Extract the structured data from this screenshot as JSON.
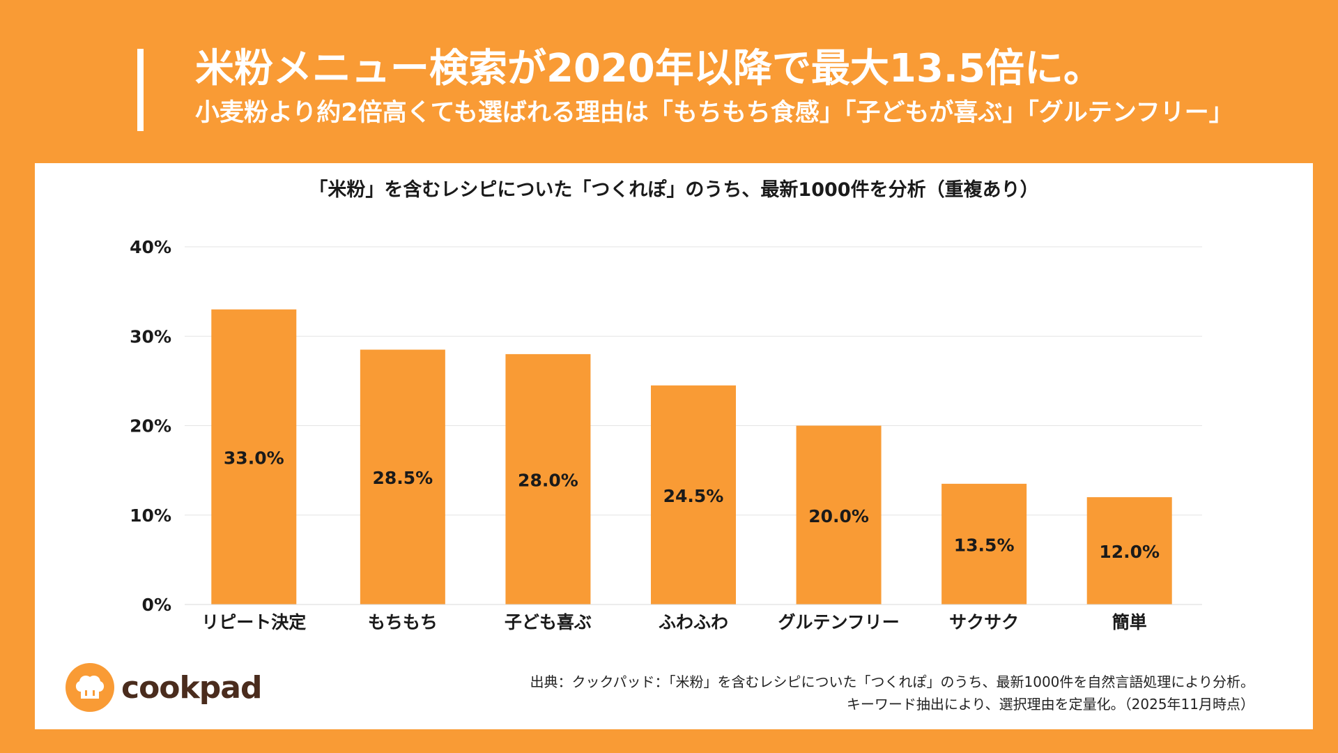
{
  "header": {
    "title": "米粉メニュー検索が2020年以降で最大13.5倍に。",
    "subtitle": "小麦粉より約2倍高くても選ばれる理由は「もちもち食感」「子どもが喜ぶ」「グルテンフリー」"
  },
  "colors": {
    "background": "#F99B35",
    "bar": "#F99B35",
    "logo_text": "#4a2c1d"
  },
  "chart_data": {
    "type": "bar",
    "title": "「米粉」を含むレシピについた「つくれぽ」のうち、最新1000件を分析（重複あり）",
    "categories": [
      "リピート決定",
      "もちもち",
      "子ども喜ぶ",
      "ふわふわ",
      "グルテンフリー",
      "サクサク",
      "簡単"
    ],
    "values": [
      33.0,
      28.5,
      28.0,
      24.5,
      20.0,
      13.5,
      12.0
    ],
    "value_labels": [
      "33.0%",
      "28.5%",
      "28.0%",
      "24.5%",
      "20.0%",
      "13.5%",
      "12.0%"
    ],
    "y_ticks": [
      0,
      10,
      20,
      30,
      40
    ],
    "y_tick_labels": [
      "0%",
      "10%",
      "20%",
      "30%",
      "40%"
    ],
    "ylim": [
      0,
      40
    ],
    "grid": true,
    "xlabel": "",
    "ylabel": ""
  },
  "logo": {
    "text": "cookpad",
    "icon": "chef-hat-icon"
  },
  "source": {
    "line1": "出典：クックパッド：「米粉」を含むレシピについた「つくれぽ」のうち、最新1000件を自然言語処理により分析。",
    "line2": "キーワード抽出により、選択理由を定量化。（2025年11月時点）"
  }
}
